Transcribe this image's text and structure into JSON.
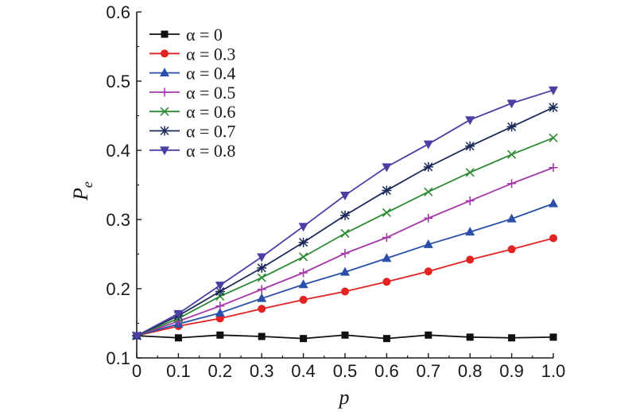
{
  "chart_data": {
    "type": "line",
    "xlabel": "p",
    "ylabel": "P",
    "ylabel_sub": "e",
    "xlim": [
      0,
      1.0
    ],
    "ylim": [
      0.1,
      0.6
    ],
    "x_ticks": [
      0,
      0.1,
      0.2,
      0.3,
      0.4,
      0.5,
      0.6,
      0.7,
      0.8,
      0.9,
      1.0
    ],
    "x_tick_labels": [
      "0",
      "0.1",
      "0.2",
      "0.3",
      "0.4",
      "0.5",
      "0.6",
      "0.7",
      "0.8",
      "0.9",
      "1.0"
    ],
    "y_ticks": [
      0.1,
      0.2,
      0.3,
      0.4,
      0.5,
      0.6
    ],
    "y_tick_labels": [
      "0.1",
      "0.2",
      "0.3",
      "0.4",
      "0.5",
      "0.6"
    ],
    "grid": false,
    "legend_position": "top-left",
    "x": [
      0,
      0.1,
      0.2,
      0.3,
      0.4,
      0.5,
      0.6,
      0.7,
      0.8,
      0.9,
      1.0
    ],
    "series": [
      {
        "name": "α = 0",
        "color": "#111111",
        "marker": "square",
        "values": [
          0.132,
          0.129,
          0.133,
          0.131,
          0.128,
          0.133,
          0.128,
          0.133,
          0.13,
          0.129,
          0.13
        ]
      },
      {
        "name": "α = 0.3",
        "color": "#e32222",
        "marker": "circle",
        "values": [
          0.132,
          0.146,
          0.157,
          0.171,
          0.184,
          0.196,
          0.21,
          0.225,
          0.242,
          0.257,
          0.273
        ]
      },
      {
        "name": "α = 0.4",
        "color": "#2a4fa8",
        "marker": "triangle-up",
        "values": [
          0.132,
          0.149,
          0.165,
          0.186,
          0.206,
          0.224,
          0.244,
          0.264,
          0.282,
          0.301,
          0.323
        ]
      },
      {
        "name": "α = 0.5",
        "color": "#a43aa8",
        "marker": "plus",
        "values": [
          0.132,
          0.153,
          0.175,
          0.199,
          0.223,
          0.251,
          0.274,
          0.302,
          0.327,
          0.352,
          0.375
        ]
      },
      {
        "name": "α = 0.6",
        "color": "#2e8a34",
        "marker": "x",
        "values": [
          0.132,
          0.157,
          0.189,
          0.216,
          0.246,
          0.28,
          0.31,
          0.34,
          0.368,
          0.394,
          0.418
        ]
      },
      {
        "name": "α = 0.7",
        "color": "#1c2a5a",
        "marker": "asterisk",
        "values": [
          0.132,
          0.161,
          0.196,
          0.23,
          0.267,
          0.306,
          0.342,
          0.376,
          0.406,
          0.434,
          0.462
        ]
      },
      {
        "name": "α = 0.8",
        "color": "#4a3fa3",
        "marker": "triangle-down",
        "values": [
          0.132,
          0.164,
          0.205,
          0.246,
          0.29,
          0.335,
          0.376,
          0.409,
          0.444,
          0.468,
          0.487
        ]
      }
    ]
  }
}
